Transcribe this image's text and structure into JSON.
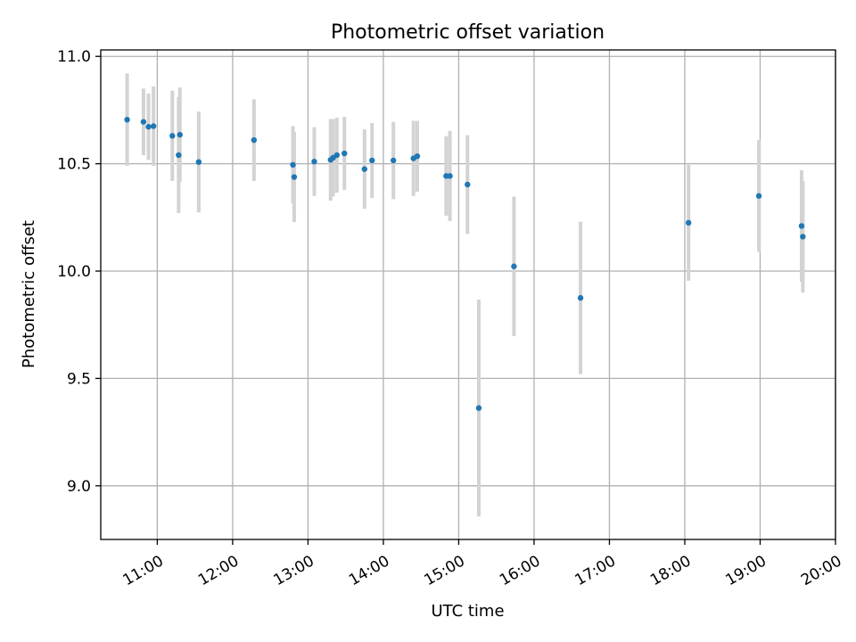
{
  "chart_data": {
    "type": "scatter",
    "title": "Photometric offset variation",
    "xlabel": "UTC time",
    "ylabel": "Photometric offset",
    "xlim": [
      "10:15",
      "20:00"
    ],
    "ylim": [
      8.75,
      11.03
    ],
    "xticks": [
      "11:00",
      "12:00",
      "13:00",
      "14:00",
      "15:00",
      "16:00",
      "17:00",
      "18:00",
      "19:00",
      "20:00"
    ],
    "yticks": [
      "9.0",
      "9.5",
      "10.0",
      "10.5",
      "11.0"
    ],
    "grid": true,
    "errorbar_color": "#d3d3d3",
    "marker_color": "#1f77b4",
    "points": [
      {
        "x": "10:36",
        "y": 10.705,
        "err": 0.215
      },
      {
        "x": "10:49",
        "y": 10.695,
        "err": 0.155
      },
      {
        "x": "10:53",
        "y": 10.672,
        "err": 0.155
      },
      {
        "x": "10:57",
        "y": 10.675,
        "err": 0.185
      },
      {
        "x": "11:12",
        "y": 10.63,
        "err": 0.21
      },
      {
        "x": "11:17",
        "y": 10.54,
        "err": 0.27
      },
      {
        "x": "11:18",
        "y": 10.635,
        "err": 0.22
      },
      {
        "x": "11:33",
        "y": 10.508,
        "err": 0.235
      },
      {
        "x": "12:17",
        "y": 10.61,
        "err": 0.19
      },
      {
        "x": "12:48",
        "y": 10.495,
        "err": 0.18
      },
      {
        "x": "12:49",
        "y": 10.438,
        "err": 0.21
      },
      {
        "x": "13:05",
        "y": 10.51,
        "err": 0.16
      },
      {
        "x": "13:18",
        "y": 10.518,
        "err": 0.19
      },
      {
        "x": "13:20",
        "y": 10.528,
        "err": 0.18
      },
      {
        "x": "13:23",
        "y": 10.54,
        "err": 0.175
      },
      {
        "x": "13:29",
        "y": 10.548,
        "err": 0.17
      },
      {
        "x": "13:45",
        "y": 10.475,
        "err": 0.185
      },
      {
        "x": "13:51",
        "y": 10.515,
        "err": 0.175
      },
      {
        "x": "14:08",
        "y": 10.515,
        "err": 0.18
      },
      {
        "x": "14:24",
        "y": 10.525,
        "err": 0.175
      },
      {
        "x": "14:27",
        "y": 10.535,
        "err": 0.165
      },
      {
        "x": "14:50",
        "y": 10.443,
        "err": 0.185
      },
      {
        "x": "14:53",
        "y": 10.443,
        "err": 0.21
      },
      {
        "x": "15:07",
        "y": 10.403,
        "err": 0.23
      },
      {
        "x": "15:16",
        "y": 9.362,
        "err": 0.505
      },
      {
        "x": "15:44",
        "y": 10.022,
        "err": 0.325
      },
      {
        "x": "16:37",
        "y": 9.875,
        "err": 0.355
      },
      {
        "x": "18:03",
        "y": 10.225,
        "err": 0.27
      },
      {
        "x": "18:59",
        "y": 10.35,
        "err": 0.26
      },
      {
        "x": "19:33",
        "y": 10.21,
        "err": 0.26
      },
      {
        "x": "19:34",
        "y": 10.16,
        "err": 0.26
      }
    ]
  }
}
